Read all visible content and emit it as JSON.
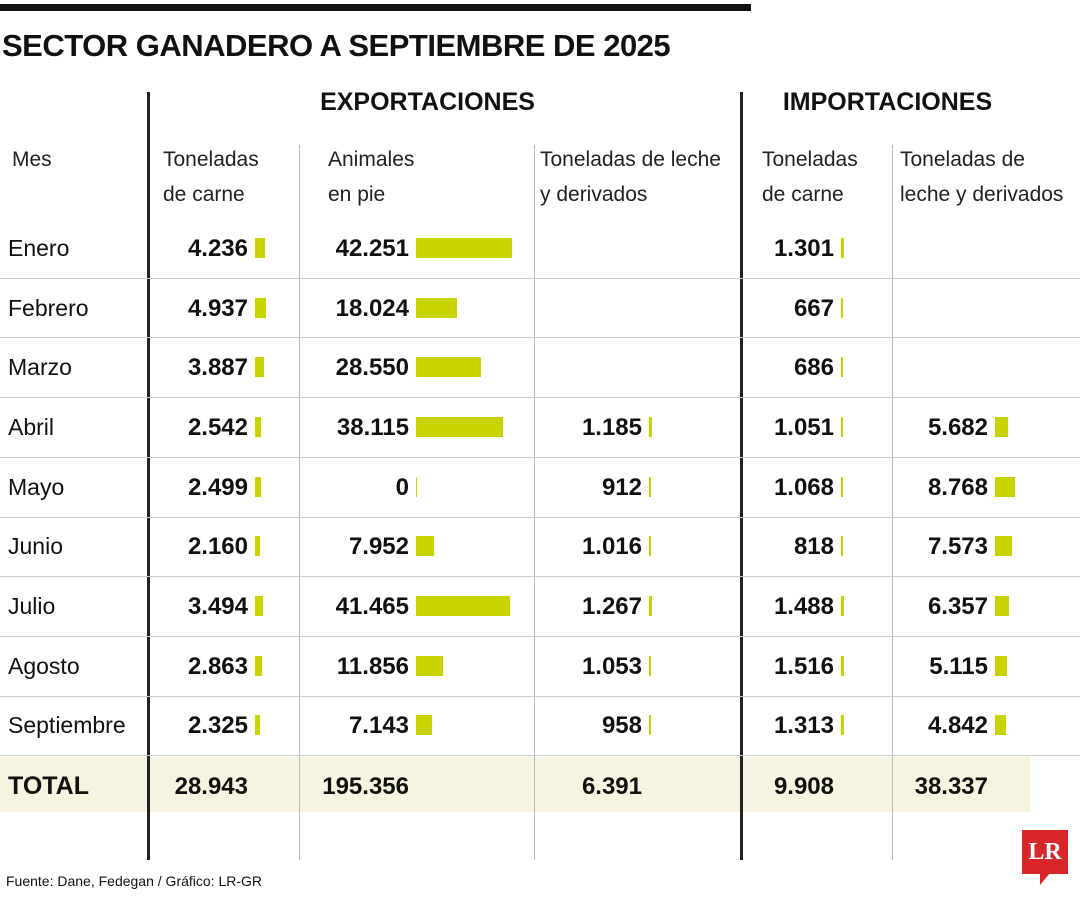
{
  "chart_data": {
    "type": "bar-table",
    "title": "SECTOR GANADERO A SEPTIEMBRE DE 2025",
    "groups": [
      "EXPORTACIONES",
      "IMPORTACIONES"
    ],
    "row_header": "Mes",
    "categories": [
      "Enero",
      "Febrero",
      "Marzo",
      "Abril",
      "Mayo",
      "Junio",
      "Julio",
      "Agosto",
      "Septiembre"
    ],
    "total_name": "TOTAL",
    "series": [
      {
        "name": "Toneladas de carne",
        "group": 0,
        "color": "#c8d400",
        "values": [
          4236,
          4937,
          3887,
          2542,
          2499,
          2160,
          3494,
          2863,
          2325
        ],
        "value_labels": [
          "4.236",
          "4.937",
          "3.887",
          "2.542",
          "2.499",
          "2.160",
          "3.494",
          "2.863",
          "2.325"
        ],
        "total": {
          "value": 28943,
          "label": "28.943"
        }
      },
      {
        "name": "Animales en pie",
        "group": 0,
        "color": "#c8d400",
        "values": [
          42251,
          18024,
          28550,
          38115,
          0,
          7952,
          41465,
          11856,
          7143
        ],
        "value_labels": [
          "42.251",
          "18.024",
          "28.550",
          "38.115",
          "0",
          "7.952",
          "41.465",
          "11.856",
          "7.143"
        ],
        "total": {
          "value": 195356,
          "label": "195.356"
        }
      },
      {
        "name": "Toneladas de leche y derivados",
        "group": 0,
        "color": "#c8d400",
        "values": [
          null,
          null,
          null,
          1185,
          912,
          1016,
          1267,
          1053,
          958
        ],
        "value_labels": [
          null,
          null,
          null,
          "1.185",
          "912",
          "1.016",
          "1.267",
          "1.053",
          "958"
        ],
        "total": {
          "value": 6391,
          "label": "6.391"
        }
      },
      {
        "name": "Toneladas de carne",
        "group": 1,
        "color": "#c8d400",
        "values": [
          1301,
          667,
          686,
          1051,
          1068,
          818,
          1488,
          1516,
          1313
        ],
        "value_labels": [
          "1.301",
          "667",
          "686",
          "1.051",
          "1.068",
          "818",
          "1.488",
          "1.516",
          "1.313"
        ],
        "total": {
          "value": 9908,
          "label": "9.908"
        }
      },
      {
        "name": "Toneladas de leche y derivados",
        "group": 1,
        "color": "#c8d400",
        "values": [
          null,
          null,
          null,
          5682,
          8768,
          7573,
          6357,
          5115,
          4842
        ],
        "value_labels": [
          null,
          null,
          null,
          "5.682",
          "8.768",
          "7.573",
          "6.357",
          "5.115",
          "4.842"
        ],
        "total": {
          "value": 38337,
          "label": "38.337"
        }
      }
    ],
    "source": "Fuente: Dane, Fedegan / Gráfico: LR-GR",
    "logo": "LR"
  }
}
